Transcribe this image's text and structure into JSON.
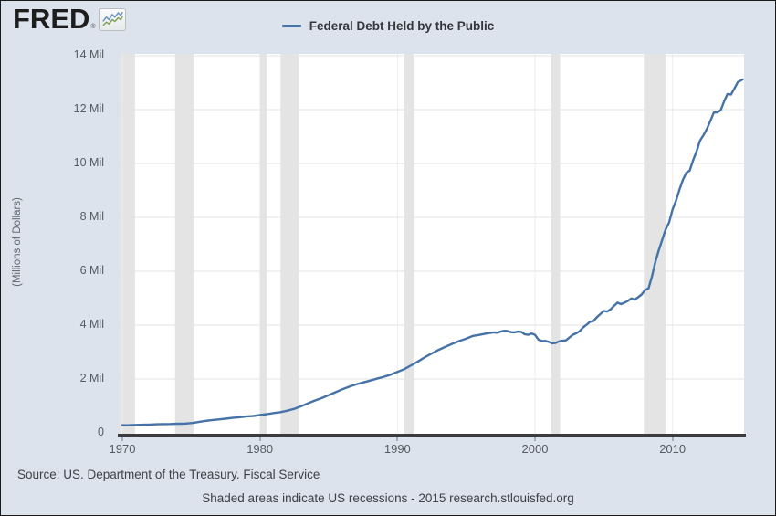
{
  "header": {
    "logo_text": "FRED",
    "logo_reg": "®",
    "legend_label": "Federal Debt Held by the Public"
  },
  "footer": {
    "source_line": "Source: US. Department of the Treasury. Fiscal Service",
    "note_line": "Shaded areas indicate US recessions - 2015 research.stlouisfed.org"
  },
  "colors": {
    "page_bg": "#dde3ec",
    "plot_bg": "#ffffff",
    "line": "#4572a7",
    "h_grid": "#e3e3e3",
    "v_grid": "#ededed",
    "recession_band": "#e4e4e4",
    "axis": "#3c3c3c",
    "tick": "#9db0c4",
    "label_text": "#555b63",
    "logo_icon_blue": "#6e93bd",
    "logo_icon_green": "#7fa05a"
  },
  "chart_data": {
    "type": "line",
    "title": "Federal Debt Held by the Public",
    "xlabel": "",
    "ylabel": "(Millions of Dollars)",
    "xlim": [
      1969.8,
      2015.2
    ],
    "ylim": [
      0,
      14000000
    ],
    "grid": true,
    "legend_position": "top-center",
    "x_ticks": [
      {
        "v": 1970,
        "label": "1970"
      },
      {
        "v": 1980,
        "label": "1980"
      },
      {
        "v": 1990,
        "label": "1990"
      },
      {
        "v": 2000,
        "label": "2000"
      },
      {
        "v": 2010,
        "label": "2010"
      }
    ],
    "y_ticks": [
      {
        "v": 0,
        "label": "0"
      },
      {
        "v": 2000000,
        "label": "2 Mil"
      },
      {
        "v": 4000000,
        "label": "4 Mil"
      },
      {
        "v": 6000000,
        "label": "6 Mil"
      },
      {
        "v": 8000000,
        "label": "8 Mil"
      },
      {
        "v": 10000000,
        "label": "10 Mil"
      },
      {
        "v": 12000000,
        "label": "12 Mil"
      },
      {
        "v": 14000000,
        "label": "14 Mil"
      }
    ],
    "recession_bands": [
      [
        1969.8,
        1970.92
      ],
      [
        1973.83,
        1975.17
      ],
      [
        1980.0,
        1980.5
      ],
      [
        1981.5,
        1982.83
      ],
      [
        1990.5,
        1991.17
      ],
      [
        2001.17,
        2001.83
      ],
      [
        2007.92,
        2009.5
      ]
    ],
    "series": [
      {
        "name": "Federal Debt Held by the Public",
        "color": "#4572a7",
        "points": [
          [
            1970.0,
            284000
          ],
          [
            1970.25,
            281000
          ],
          [
            1970.5,
            285000
          ],
          [
            1970.75,
            290000
          ],
          [
            1971.0,
            296000
          ],
          [
            1971.5,
            303000
          ],
          [
            1972.0,
            310000
          ],
          [
            1972.5,
            318000
          ],
          [
            1973.0,
            326000
          ],
          [
            1973.5,
            330000
          ],
          [
            1974.0,
            340000
          ],
          [
            1974.5,
            343000
          ],
          [
            1975.0,
            363000
          ],
          [
            1975.25,
            380000
          ],
          [
            1975.5,
            400000
          ],
          [
            1975.75,
            420000
          ],
          [
            1976.0,
            440000
          ],
          [
            1976.5,
            472000
          ],
          [
            1977.0,
            500000
          ],
          [
            1977.5,
            525000
          ],
          [
            1978.0,
            555000
          ],
          [
            1978.5,
            580000
          ],
          [
            1979.0,
            608000
          ],
          [
            1979.5,
            625000
          ],
          [
            1980.0,
            660000
          ],
          [
            1980.5,
            695000
          ],
          [
            1981.0,
            735000
          ],
          [
            1981.5,
            770000
          ],
          [
            1982.0,
            825000
          ],
          [
            1982.5,
            890000
          ],
          [
            1983.0,
            990000
          ],
          [
            1983.5,
            1100000
          ],
          [
            1984.0,
            1200000
          ],
          [
            1984.5,
            1290000
          ],
          [
            1985.0,
            1400000
          ],
          [
            1985.5,
            1510000
          ],
          [
            1986.0,
            1620000
          ],
          [
            1986.5,
            1715000
          ],
          [
            1987.0,
            1800000
          ],
          [
            1987.5,
            1870000
          ],
          [
            1988.0,
            1940000
          ],
          [
            1988.5,
            2010000
          ],
          [
            1989.0,
            2080000
          ],
          [
            1989.5,
            2160000
          ],
          [
            1990.0,
            2260000
          ],
          [
            1990.5,
            2365000
          ],
          [
            1991.0,
            2510000
          ],
          [
            1991.5,
            2650000
          ],
          [
            1992.0,
            2810000
          ],
          [
            1992.5,
            2950000
          ],
          [
            1993.0,
            3080000
          ],
          [
            1993.5,
            3200000
          ],
          [
            1994.0,
            3310000
          ],
          [
            1994.5,
            3410000
          ],
          [
            1995.0,
            3500000
          ],
          [
            1995.5,
            3600000
          ],
          [
            1996.0,
            3640000
          ],
          [
            1996.5,
            3690000
          ],
          [
            1997.0,
            3730000
          ],
          [
            1997.25,
            3720000
          ],
          [
            1997.5,
            3760000
          ],
          [
            1997.75,
            3790000
          ],
          [
            1998.0,
            3780000
          ],
          [
            1998.25,
            3740000
          ],
          [
            1998.5,
            3730000
          ],
          [
            1998.75,
            3760000
          ],
          [
            1999.0,
            3750000
          ],
          [
            1999.25,
            3660000
          ],
          [
            1999.5,
            3640000
          ],
          [
            1999.75,
            3690000
          ],
          [
            2000.0,
            3640000
          ],
          [
            2000.25,
            3460000
          ],
          [
            2000.5,
            3410000
          ],
          [
            2000.75,
            3415000
          ],
          [
            2001.0,
            3380000
          ],
          [
            2001.25,
            3325000
          ],
          [
            2001.5,
            3340000
          ],
          [
            2001.75,
            3395000
          ],
          [
            2002.0,
            3420000
          ],
          [
            2002.25,
            3435000
          ],
          [
            2002.5,
            3540000
          ],
          [
            2002.75,
            3640000
          ],
          [
            2003.0,
            3700000
          ],
          [
            2003.25,
            3775000
          ],
          [
            2003.5,
            3915000
          ],
          [
            2003.75,
            4015000
          ],
          [
            2004.0,
            4125000
          ],
          [
            2004.25,
            4150000
          ],
          [
            2004.5,
            4295000
          ],
          [
            2004.75,
            4410000
          ],
          [
            2005.0,
            4525000
          ],
          [
            2005.25,
            4505000
          ],
          [
            2005.5,
            4590000
          ],
          [
            2005.75,
            4715000
          ],
          [
            2006.0,
            4835000
          ],
          [
            2006.25,
            4780000
          ],
          [
            2006.5,
            4830000
          ],
          [
            2006.75,
            4900000
          ],
          [
            2007.0,
            4990000
          ],
          [
            2007.25,
            4950000
          ],
          [
            2007.5,
            5035000
          ],
          [
            2007.75,
            5135000
          ],
          [
            2008.0,
            5300000
          ],
          [
            2008.25,
            5360000
          ],
          [
            2008.5,
            5800000
          ],
          [
            2008.75,
            6340000
          ],
          [
            2009.0,
            6780000
          ],
          [
            2009.25,
            7170000
          ],
          [
            2009.5,
            7550000
          ],
          [
            2009.75,
            7810000
          ],
          [
            2010.0,
            8290000
          ],
          [
            2010.25,
            8610000
          ],
          [
            2010.5,
            9020000
          ],
          [
            2010.75,
            9390000
          ],
          [
            2011.0,
            9650000
          ],
          [
            2011.25,
            9740000
          ],
          [
            2011.5,
            10130000
          ],
          [
            2011.75,
            10450000
          ],
          [
            2012.0,
            10850000
          ],
          [
            2012.25,
            11050000
          ],
          [
            2012.5,
            11280000
          ],
          [
            2012.75,
            11580000
          ],
          [
            2013.0,
            11890000
          ],
          [
            2013.25,
            11895000
          ],
          [
            2013.5,
            11975000
          ],
          [
            2013.75,
            12310000
          ],
          [
            2014.0,
            12580000
          ],
          [
            2014.25,
            12560000
          ],
          [
            2014.5,
            12785000
          ],
          [
            2014.75,
            13020000
          ],
          [
            2015.0,
            13090000
          ],
          [
            2015.1,
            13120000
          ]
        ]
      }
    ]
  }
}
